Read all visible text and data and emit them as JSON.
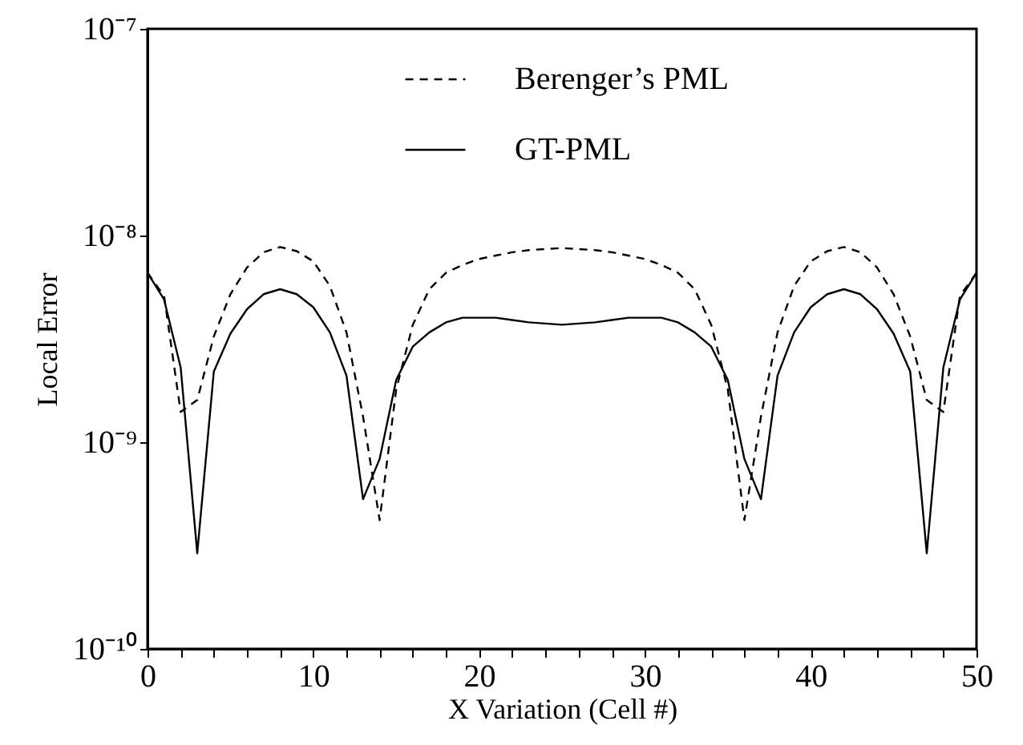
{
  "chart_data": {
    "type": "line",
    "xlabel": "X Variation (Cell #)",
    "ylabel": "Local Error",
    "log": "y",
    "legend": "top",
    "xlim": [
      0,
      50
    ],
    "ylim": [
      1e-10,
      1e-07
    ],
    "xticks": [
      0,
      {
        "value": 2,
        "label": null
      },
      {
        "value": 4,
        "label": null
      },
      {
        "value": 6,
        "label": null
      },
      {
        "value": 8,
        "label": null
      },
      10,
      {
        "value": 12,
        "label": null
      },
      {
        "value": 14,
        "label": null
      },
      {
        "value": 16,
        "label": null
      },
      {
        "value": 18,
        "label": null
      },
      20,
      {
        "value": 22,
        "label": null
      },
      {
        "value": 24,
        "label": null
      },
      {
        "value": 26,
        "label": null
      },
      {
        "value": 28,
        "label": null
      },
      30,
      {
        "value": 32,
        "label": null
      },
      {
        "value": 34,
        "label": null
      },
      {
        "value": 36,
        "label": null
      },
      {
        "value": 38,
        "label": null
      },
      40,
      {
        "value": 42,
        "label": null
      },
      {
        "value": 44,
        "label": null
      },
      {
        "value": 46,
        "label": null
      },
      {
        "value": 48,
        "label": null
      },
      50
    ],
    "yticks": [
      {
        "value": 1e-10,
        "label": "10⁻¹⁰"
      },
      {
        "value": 1e-09,
        "label": "10⁻⁹"
      },
      {
        "value": 1e-08,
        "label": "10⁻⁸"
      },
      {
        "value": 1e-07,
        "label": "10⁻⁷"
      }
    ],
    "x": [
      0,
      1,
      2,
      3,
      4,
      5,
      6,
      7,
      8,
      9,
      10,
      11,
      12,
      13,
      14,
      15,
      16,
      17,
      18,
      19,
      20,
      21,
      22,
      23,
      24,
      25,
      26,
      27,
      28,
      29,
      30,
      31,
      32,
      33,
      34,
      35,
      36,
      37,
      38,
      39,
      40,
      41,
      42,
      43,
      44,
      45,
      46,
      47,
      48,
      49,
      50
    ],
    "series": [
      {
        "name": "Berenger’s PML",
        "color": "#000000",
        "line_style": "dashed",
        "values": [
          6.6e-09,
          5.1e-09,
          1.4e-09,
          1.6e-09,
          3.25e-09,
          5.2e-09,
          7e-09,
          8.3e-09,
          8.8e-09,
          8.4e-09,
          7.5e-09,
          5.7e-09,
          3.4e-09,
          1.33e-09,
          4.2e-10,
          1.8e-09,
          3.7e-09,
          5.5e-09,
          6.6e-09,
          7.2e-09,
          7.7e-09,
          8e-09,
          8.3e-09,
          8.5e-09,
          8.6e-09,
          8.7e-09,
          8.6e-09,
          8.5e-09,
          8.3e-09,
          8e-09,
          7.7e-09,
          7.2e-09,
          6.6e-09,
          5.5e-09,
          3.7e-09,
          1.8e-09,
          4.2e-10,
          1.33e-09,
          3.4e-09,
          5.7e-09,
          7.5e-09,
          8.4e-09,
          8.8e-09,
          8.3e-09,
          7e-09,
          5.2e-09,
          3.25e-09,
          1.6e-09,
          1.4e-09,
          5.1e-09,
          6.6e-09
        ]
      },
      {
        "name": "GT-PML",
        "color": "#000000",
        "line_style": "solid",
        "values": [
          6.6e-09,
          4.9e-09,
          2.3e-09,
          2.9e-10,
          2.2e-09,
          3.35e-09,
          4.4e-09,
          5.2e-09,
          5.5e-09,
          5.2e-09,
          4.5e-09,
          3.4e-09,
          2.1e-09,
          5.3e-10,
          8.3e-10,
          2e-09,
          2.9e-09,
          3.4e-09,
          3.8e-09,
          4e-09,
          4e-09,
          4e-09,
          3.9e-09,
          3.8e-09,
          3.75e-09,
          3.7e-09,
          3.75e-09,
          3.8e-09,
          3.9e-09,
          4e-09,
          4e-09,
          4e-09,
          3.8e-09,
          3.4e-09,
          2.9e-09,
          2e-09,
          8.3e-10,
          5.3e-10,
          2.1e-09,
          3.4e-09,
          4.5e-09,
          5.2e-09,
          5.5e-09,
          5.2e-09,
          4.4e-09,
          3.35e-09,
          2.2e-09,
          2.9e-10,
          2.3e-09,
          4.9e-09,
          6.6e-09
        ]
      }
    ]
  }
}
